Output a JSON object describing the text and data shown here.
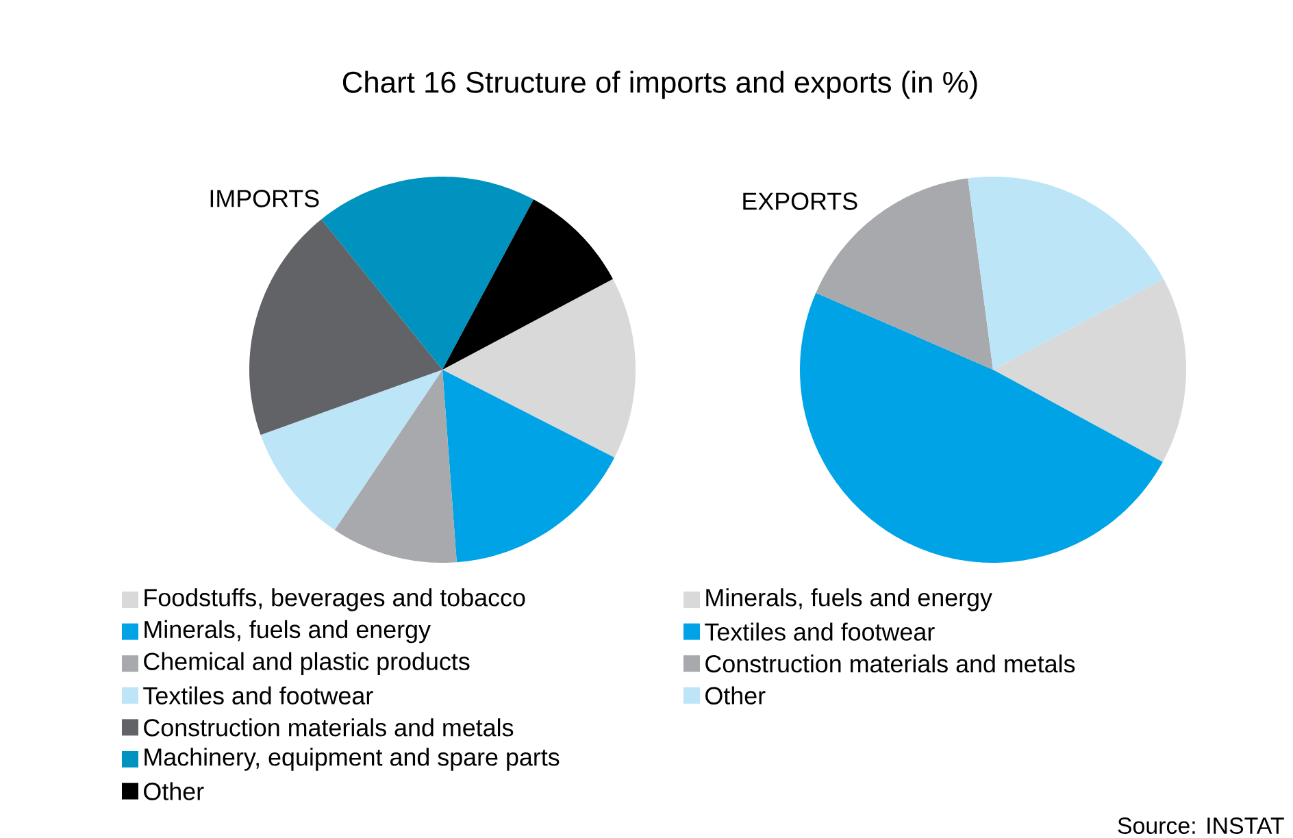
{
  "chart_data": [
    {
      "type": "pie",
      "title": "Chart 16 Structure of imports and exports (in %)",
      "subtitle": "IMPORTS",
      "legend": "bottom",
      "categories": [
        "Foodstuffs, beverages and tobacco",
        "Minerals, fuels and energy",
        "Chemical and plastic products",
        "Textiles and footwear",
        "Construction materials and metals",
        "Machinery, equipment and spare parts",
        "Other"
      ],
      "values": [
        15.3,
        16.3,
        10.6,
        10.1,
        19.7,
        18.6,
        9.4
      ],
      "colors": [
        "#d9d9da",
        "#00a3e6",
        "#a7a9ac",
        "#bde5f8",
        "#626366",
        "#0093c0",
        "#000000"
      ]
    },
    {
      "type": "pie",
      "title": "EXPORTS",
      "legend": "bottom",
      "annotations": [
        "Source: INSTAT"
      ],
      "categories": [
        "Minerals, fuels and energy",
        "Textiles and footwear",
        "Construction materials and metals",
        "Other"
      ],
      "values": [
        15.7,
        48.6,
        16.4,
        19.3
      ],
      "colors": [
        "#d9d9da",
        "#00a3e6",
        "#a7a9ac",
        "#bde5f8"
      ]
    }
  ]
}
